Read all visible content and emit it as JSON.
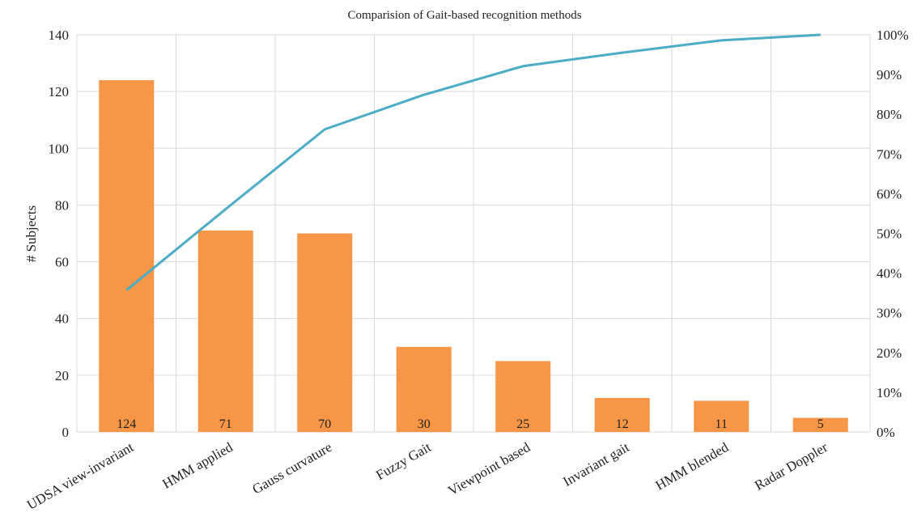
{
  "chart_data": {
    "type": "bar",
    "title": "Comparision of Gait-based recognition methods",
    "ylabel": "# Subjects",
    "y2label": "",
    "categories": [
      "UDSA view-invariant",
      "HMM applied",
      "Gauss curvature",
      "Fuzzy Gait",
      "Viewpoint based",
      "Invariant gait",
      "HMM blended",
      "Radar Doppler"
    ],
    "values": [
      124,
      71,
      70,
      30,
      25,
      12,
      11,
      5
    ],
    "data_labels": [
      "124",
      "71",
      "70",
      "30",
      "25",
      "12",
      "11",
      "5"
    ],
    "cumulative_percent": [
      35.7,
      56.1,
      76.2,
      84.9,
      92.1,
      95.5,
      98.6,
      100
    ],
    "ylim": [
      0,
      140
    ],
    "yticks": [
      0,
      20,
      40,
      60,
      80,
      100,
      120,
      140
    ],
    "y2lim": [
      0,
      100
    ],
    "y2ticks": [
      "0%",
      "10%",
      "20%",
      "30%",
      "40%",
      "50%",
      "60%",
      "70%",
      "80%",
      "90%",
      "100%"
    ],
    "grid": true,
    "legend": "none",
    "colors": {
      "bar": "#F79646",
      "line": "#4BACC6",
      "grid": "#D9D9D9"
    }
  }
}
